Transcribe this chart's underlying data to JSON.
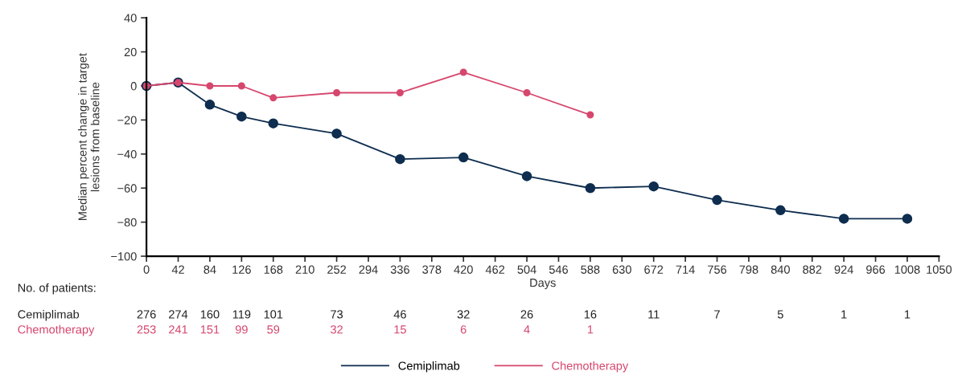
{
  "chart_data": {
    "type": "line",
    "xlabel": "Days",
    "ylabel": "Median percent change in target\nlesions from baseline",
    "xlim": [
      0,
      1050
    ],
    "xticks": [
      0,
      42,
      84,
      126,
      168,
      210,
      252,
      294,
      336,
      378,
      420,
      462,
      504,
      546,
      588,
      630,
      672,
      714,
      756,
      798,
      840,
      882,
      924,
      966,
      1008,
      1050
    ],
    "ylim": [
      -100,
      40
    ],
    "yticks": [
      {
        "value": -100,
        "label": "−100"
      },
      {
        "value": -80,
        "label": "−80"
      },
      {
        "value": -60,
        "label": "−60"
      },
      {
        "value": -40,
        "label": "−40"
      },
      {
        "value": -20,
        "label": "−20"
      },
      0,
      20,
      40
    ],
    "marker": "circle",
    "line_style": "solid",
    "grid": false,
    "legend": "bottom",
    "series": [
      {
        "name": "Cemiplimab",
        "color": "#0e2d4f",
        "x": [
          0,
          42,
          84,
          126,
          168,
          252,
          336,
          420,
          504,
          588,
          672,
          756,
          840,
          924,
          1008
        ],
        "values": [
          0,
          2,
          -11,
          -18,
          -22,
          -28,
          -43,
          -42,
          -53,
          -60,
          -59,
          -67,
          -73,
          -78,
          -78
        ]
      },
      {
        "name": "Chemotherapy",
        "color": "#d6466d",
        "x": [
          0,
          42,
          84,
          126,
          168,
          252,
          336,
          420,
          504,
          588
        ],
        "values": [
          0,
          2,
          0,
          0,
          -7,
          -4,
          -4,
          8,
          -4,
          -17
        ]
      }
    ],
    "annotations": [
      "No. of patients:",
      "Cemiplimab",
      "Chemotherapy",
      "276",
      "274",
      "160",
      "119",
      "101",
      "73",
      "46",
      "32",
      "26",
      "16",
      "11",
      "7",
      "5",
      "1",
      "1",
      "253",
      "241",
      "151",
      "99",
      "59",
      "32",
      "15",
      "6",
      "4",
      "1"
    ]
  }
}
